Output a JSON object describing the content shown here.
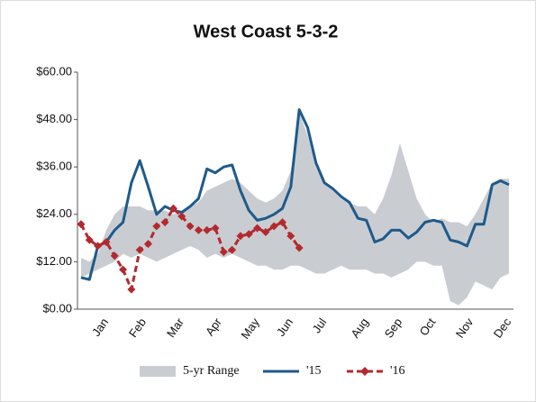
{
  "chart_data": {
    "type": "line",
    "title": "West Coast  5-3-2",
    "x": [
      1,
      2,
      3,
      4,
      5,
      6,
      7,
      8,
      9,
      10,
      11,
      12,
      13,
      14,
      15,
      16,
      17,
      18,
      19,
      20,
      21,
      22,
      23,
      24,
      25,
      26,
      27,
      28,
      29,
      30,
      31,
      32,
      33,
      34,
      35,
      36,
      37,
      38,
      39,
      40,
      41,
      42,
      43,
      44,
      45,
      46,
      47,
      48,
      49,
      50,
      51,
      52
    ],
    "xlim": [
      1,
      52
    ],
    "xticks": [
      {
        "value": 4,
        "label": "Jan"
      },
      {
        "value": 8.5,
        "label": "Feb"
      },
      {
        "value": 13,
        "label": "Mar"
      },
      {
        "value": 17.5,
        "label": "Apr"
      },
      {
        "value": 22,
        "label": "May"
      },
      {
        "value": 26,
        "label": "Jun"
      },
      {
        "value": 30,
        "label": "Jul"
      },
      {
        "value": 35,
        "label": "Aug"
      },
      {
        "value": 39,
        "label": "Sep"
      },
      {
        "value": 43,
        "label": "Oct"
      },
      {
        "value": 47.5,
        "label": "Nov"
      },
      {
        "value": 52,
        "label": "Dec"
      }
    ],
    "ylim": [
      0,
      60
    ],
    "yticks": [
      {
        "value": 0,
        "label": "$0.00"
      },
      {
        "value": 12,
        "label": "$12.00"
      },
      {
        "value": 24,
        "label": "$24.00"
      },
      {
        "value": 36,
        "label": "$36.00"
      },
      {
        "value": 48,
        "label": "$48.00"
      },
      {
        "value": 60,
        "label": "$60.00"
      }
    ],
    "legend": "bottom",
    "series": [
      {
        "name": "5-yr Range",
        "color": "#c9cdd2",
        "upper": [
          13,
          12,
          14,
          20,
          24,
          26,
          26,
          26,
          25,
          25,
          25,
          24,
          25,
          26,
          27,
          30,
          31,
          32,
          33,
          32,
          30,
          28,
          27,
          28,
          30,
          35,
          50,
          44,
          36,
          32,
          30,
          28,
          27,
          26,
          26,
          24,
          28,
          34,
          42,
          35,
          28,
          24,
          22,
          23,
          22,
          22,
          21,
          24,
          28,
          32,
          33,
          33
        ],
        "lower": [
          8,
          9,
          10,
          11,
          12,
          14,
          13,
          14,
          13,
          12,
          13,
          14,
          15,
          16,
          15,
          13,
          14,
          13,
          14,
          13,
          12,
          11,
          11,
          10,
          10,
          11,
          11,
          10,
          9,
          9,
          10,
          11,
          10,
          10,
          10,
          9,
          9,
          8,
          9,
          10,
          12,
          12,
          11,
          11,
          2,
          1,
          3,
          7,
          6,
          5,
          8,
          9
        ]
      },
      {
        "name": "'15",
        "color": "#1f5a8a",
        "values": [
          8,
          7.5,
          16,
          17,
          20,
          22,
          32,
          37.6,
          31,
          24,
          26,
          25,
          24.5,
          26,
          28,
          35.5,
          34.5,
          36,
          36.5,
          30,
          25,
          22.5,
          23,
          24,
          25.5,
          31,
          50.5,
          46,
          37,
          32,
          30.5,
          28.5,
          27,
          23,
          22.5,
          17,
          17.8,
          20,
          20,
          18,
          19.5,
          22,
          22.5,
          22,
          17.5,
          17,
          16,
          21.5,
          21.5,
          31.5,
          32.5,
          31.5
        ]
      },
      {
        "name": "'16",
        "color": "#b22a2e",
        "values": [
          21.5,
          17.5,
          16,
          17,
          13.5,
          10,
          5,
          15,
          16.5,
          21,
          22,
          25.5,
          23.5,
          21,
          20,
          20,
          20.5,
          14.5,
          15,
          18.5,
          19,
          20.5,
          19.5,
          21,
          22,
          18.5,
          15.5,
          null,
          null,
          null,
          null,
          null,
          null,
          null,
          null,
          null,
          null,
          null,
          null,
          null,
          null,
          null,
          null,
          null,
          null,
          null,
          null,
          null,
          null,
          null,
          null,
          null
        ]
      }
    ]
  }
}
